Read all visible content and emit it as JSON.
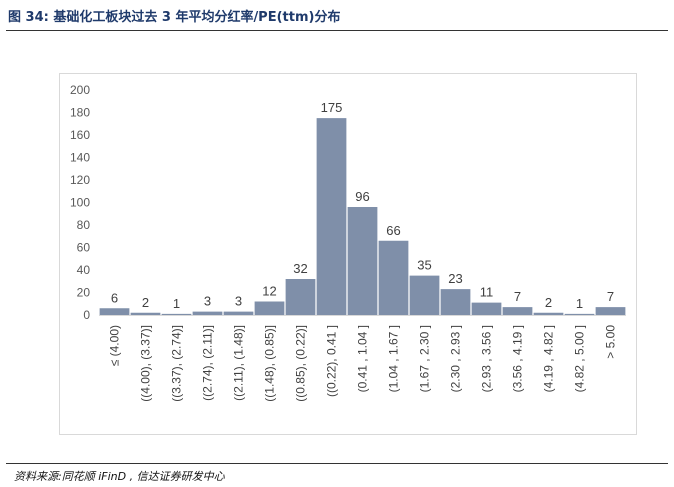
{
  "header": {
    "figure_title": "图 34:  基础化工板块过去 3 年平均分红率/PE(ttm)分布"
  },
  "footer": {
    "source": "资料来源:同花顺 iFinD , 信达证券研发中心"
  },
  "colors": {
    "bar": "#7f8fa9",
    "title": "#1f3a6b"
  },
  "chart_data": {
    "type": "bar",
    "categories": [
      "≤ (4.00)",
      "((4.00), (3.37)]",
      "((3.37), (2.74)]",
      "((2.74), (2.11)]",
      "((2.11), (1.48)]",
      "((1.48), (0.85)]",
      "((0.85), (0.22)]",
      "((0.22), 0.41 ]",
      "(0.41 , 1.04 ]",
      "(1.04 , 1.67 ]",
      "(1.67 , 2.30 ]",
      "(2.30 , 2.93 ]",
      "(2.93 , 3.56 ]",
      "(3.56 , 4.19 ]",
      "(4.19 , 4.82 ]",
      "(4.82 , 5.00 ]",
      "> 5.00"
    ],
    "values": [
      6,
      2,
      1,
      3,
      3,
      12,
      32,
      175,
      96,
      66,
      35,
      23,
      11,
      7,
      2,
      1,
      7
    ],
    "y_ticks": [
      0,
      20,
      40,
      60,
      80,
      100,
      120,
      140,
      160,
      180,
      200
    ],
    "ylim": [
      0,
      200
    ],
    "grid": false,
    "data_labels": true,
    "legend": "none"
  }
}
